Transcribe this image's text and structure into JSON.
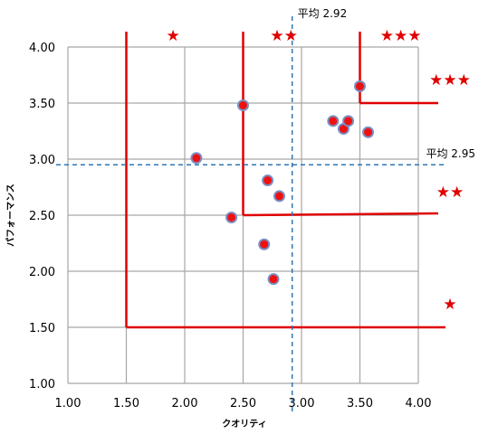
{
  "chart_data": {
    "type": "scatter",
    "title": "",
    "xlabel": "クオリティ",
    "ylabel": "パフォーマンス",
    "xlim": [
      1.0,
      4.0
    ],
    "ylim": [
      1.0,
      4.0
    ],
    "x_ticks": [
      "1.00",
      "1.50",
      "2.00",
      "2.50",
      "3.00",
      "3.50",
      "4.00"
    ],
    "y_ticks": [
      "1.00",
      "1.50",
      "2.00",
      "2.50",
      "3.00",
      "3.50",
      "4.00"
    ],
    "grid": true,
    "points": [
      {
        "x": 2.1,
        "y": 3.01
      },
      {
        "x": 2.4,
        "y": 2.48
      },
      {
        "x": 2.5,
        "y": 3.48
      },
      {
        "x": 2.68,
        "y": 2.24
      },
      {
        "x": 2.71,
        "y": 2.81
      },
      {
        "x": 2.76,
        "y": 1.93
      },
      {
        "x": 2.81,
        "y": 2.67
      },
      {
        "x": 3.27,
        "y": 3.34
      },
      {
        "x": 3.36,
        "y": 3.27
      },
      {
        "x": 3.4,
        "y": 3.34
      },
      {
        "x": 3.5,
        "y": 3.65
      },
      {
        "x": 3.57,
        "y": 3.24
      }
    ],
    "point_color": "#ee1111",
    "point_edge_color": "#7a8fc2",
    "averages": {
      "x": {
        "value": 2.92,
        "label": "平均 2.92"
      },
      "y": {
        "value": 2.95,
        "label": "平均 2.95"
      }
    },
    "average_line_color": "#2e75b6",
    "tier_lines": [
      {
        "x": 1.5,
        "y": 1.5,
        "label": "★"
      },
      {
        "x": 2.5,
        "y": 2.5,
        "label": "★★"
      },
      {
        "x": 3.5,
        "y": 3.5,
        "label": "★★★"
      }
    ],
    "tier_line_color": "#e00000",
    "top_labels": [
      {
        "x": 1.9,
        "label": "★"
      },
      {
        "x": 2.85,
        "label": "★★"
      },
      {
        "x": 3.85,
        "label": "★★★"
      }
    ]
  }
}
